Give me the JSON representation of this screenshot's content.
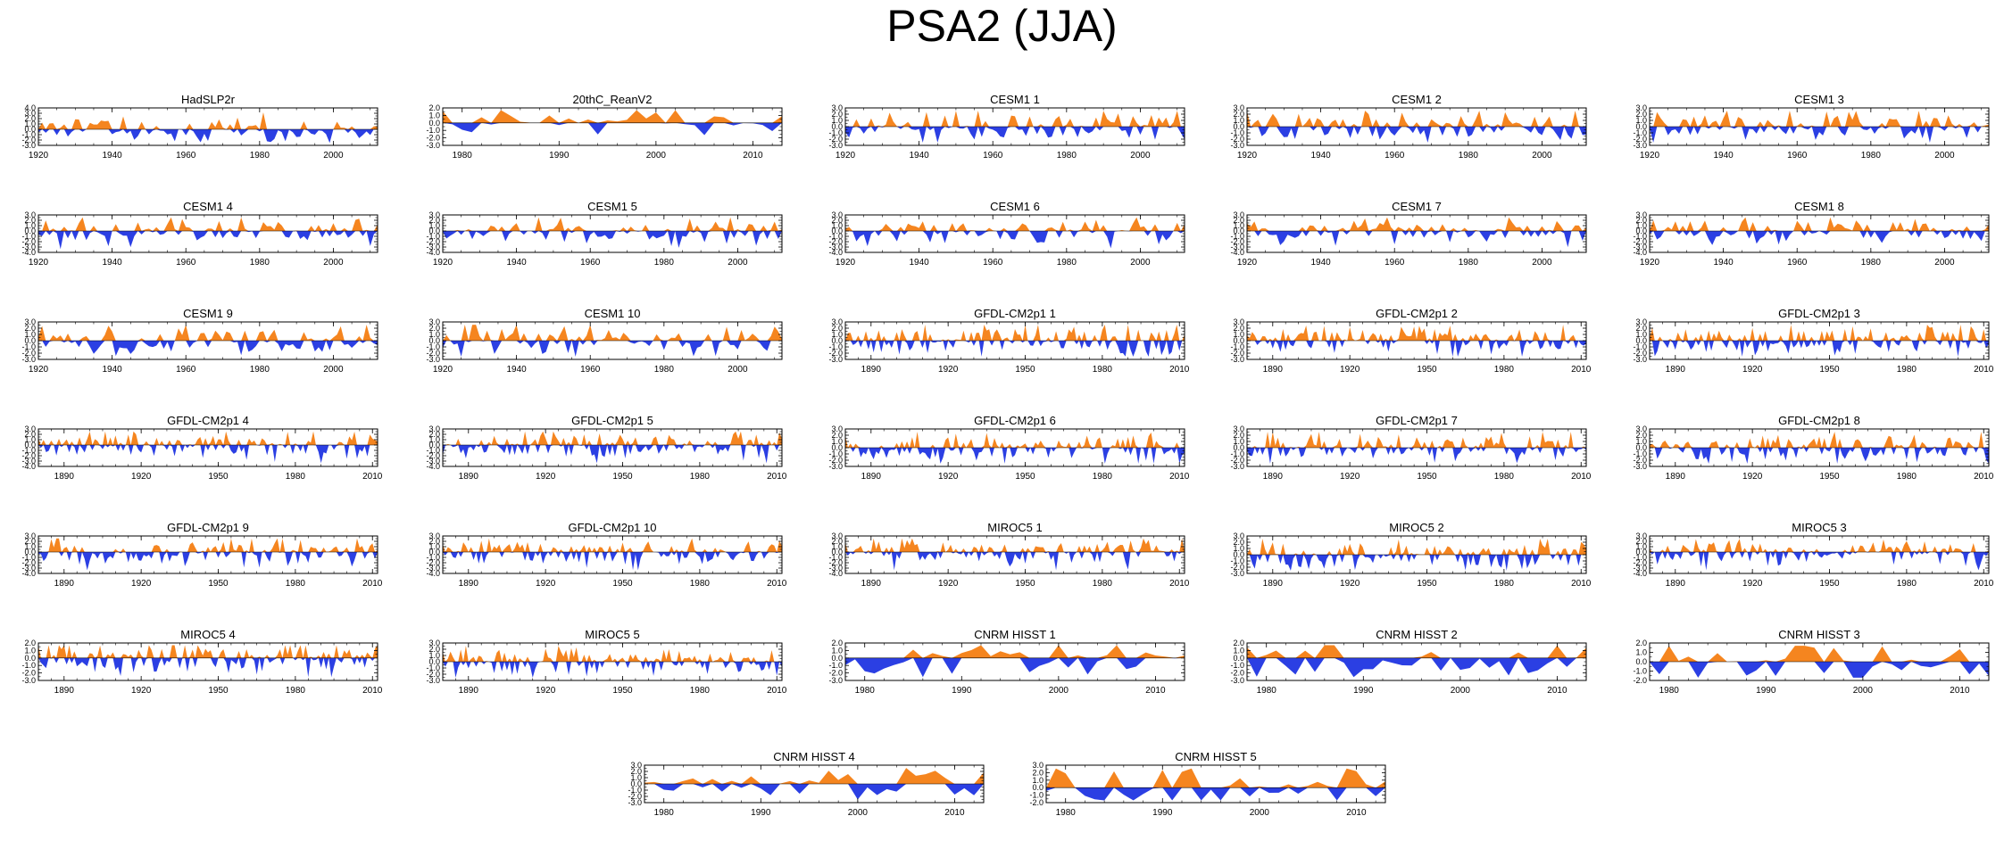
{
  "title": "PSA2 (JJA)",
  "colors": {
    "positive": "#f5851f",
    "negative": "#2b3fe3",
    "axis": "#000000"
  },
  "chart_data": [
    {
      "type": "area",
      "title": "HadSLP2r",
      "xlim": [
        1920,
        2012
      ],
      "xticks": [
        1920,
        1940,
        1960,
        1980,
        2000
      ],
      "ylim": [
        -3,
        4
      ],
      "yticks": [
        -3,
        -2,
        -1,
        0,
        1,
        2,
        3,
        4
      ],
      "seed": 1
    },
    {
      "type": "area",
      "title": "20thC_ReanV2",
      "xlim": [
        1978,
        2013
      ],
      "xticks": [
        1980,
        1990,
        2000,
        2010
      ],
      "ylim": [
        -3,
        2
      ],
      "yticks": [
        -3,
        -2,
        -1,
        0,
        1,
        2
      ],
      "seed": 2
    },
    {
      "type": "area",
      "title": "CESM1 1",
      "xlim": [
        1920,
        2012
      ],
      "xticks": [
        1920,
        1940,
        1960,
        1980,
        2000
      ],
      "ylim": [
        -3,
        3
      ],
      "yticks": [
        -3,
        -2,
        -1,
        0,
        1,
        2,
        3
      ],
      "seed": 3
    },
    {
      "type": "area",
      "title": "CESM1 2",
      "xlim": [
        1920,
        2012
      ],
      "xticks": [
        1920,
        1940,
        1960,
        1980,
        2000
      ],
      "ylim": [
        -3,
        3
      ],
      "yticks": [
        -3,
        -2,
        -1,
        0,
        1,
        2,
        3
      ],
      "seed": 4
    },
    {
      "type": "area",
      "title": "CESM1 3",
      "xlim": [
        1920,
        2012
      ],
      "xticks": [
        1920,
        1940,
        1960,
        1980,
        2000
      ],
      "ylim": [
        -3,
        3
      ],
      "yticks": [
        -3,
        -2,
        -1,
        0,
        1,
        2,
        3
      ],
      "seed": 5
    },
    {
      "type": "area",
      "title": "CESM1 4",
      "xlim": [
        1920,
        2012
      ],
      "xticks": [
        1920,
        1940,
        1960,
        1980,
        2000
      ],
      "ylim": [
        -4,
        3
      ],
      "yticks": [
        -4,
        -3,
        -2,
        -1,
        0,
        1,
        2,
        3
      ],
      "seed": 6
    },
    {
      "type": "area",
      "title": "CESM1 5",
      "xlim": [
        1920,
        2012
      ],
      "xticks": [
        1920,
        1940,
        1960,
        1980,
        2000
      ],
      "ylim": [
        -4,
        3
      ],
      "yticks": [
        -4,
        -3,
        -2,
        -1,
        0,
        1,
        2,
        3
      ],
      "seed": 7
    },
    {
      "type": "area",
      "title": "CESM1 6",
      "xlim": [
        1920,
        2012
      ],
      "xticks": [
        1920,
        1940,
        1960,
        1980,
        2000
      ],
      "ylim": [
        -4,
        3
      ],
      "yticks": [
        -4,
        -3,
        -2,
        -1,
        0,
        1,
        2,
        3
      ],
      "seed": 8
    },
    {
      "type": "area",
      "title": "CESM1 7",
      "xlim": [
        1920,
        2012
      ],
      "xticks": [
        1920,
        1940,
        1960,
        1980,
        2000
      ],
      "ylim": [
        -4,
        3
      ],
      "yticks": [
        -4,
        -3,
        -2,
        -1,
        0,
        1,
        2,
        3
      ],
      "seed": 9
    },
    {
      "type": "area",
      "title": "CESM1 8",
      "xlim": [
        1920,
        2012
      ],
      "xticks": [
        1920,
        1940,
        1960,
        1980,
        2000
      ],
      "ylim": [
        -4,
        3
      ],
      "yticks": [
        -4,
        -3,
        -2,
        -1,
        0,
        1,
        2,
        3
      ],
      "seed": 10
    },
    {
      "type": "area",
      "title": "CESM1 9",
      "xlim": [
        1920,
        2012
      ],
      "xticks": [
        1920,
        1940,
        1960,
        1980,
        2000
      ],
      "ylim": [
        -3,
        3
      ],
      "yticks": [
        -3,
        -2,
        -1,
        0,
        1,
        2,
        3
      ],
      "seed": 11
    },
    {
      "type": "area",
      "title": "CESM1 10",
      "xlim": [
        1920,
        2012
      ],
      "xticks": [
        1920,
        1940,
        1960,
        1980,
        2000
      ],
      "ylim": [
        -3,
        3
      ],
      "yticks": [
        -3,
        -2,
        -1,
        0,
        1,
        2,
        3
      ],
      "seed": 12
    },
    {
      "type": "area",
      "title": "GFDL-CM2p1 1",
      "xlim": [
        1880,
        2012
      ],
      "xticks": [
        1890,
        1920,
        1950,
        1980,
        2010
      ],
      "ylim": [
        -3,
        3
      ],
      "yticks": [
        -3,
        -2,
        -1,
        0,
        1,
        2,
        3
      ],
      "seed": 13
    },
    {
      "type": "area",
      "title": "GFDL-CM2p1 2",
      "xlim": [
        1880,
        2012
      ],
      "xticks": [
        1890,
        1920,
        1950,
        1980,
        2010
      ],
      "ylim": [
        -3,
        3
      ],
      "yticks": [
        -3,
        -2,
        -1,
        0,
        1,
        2,
        3
      ],
      "seed": 14
    },
    {
      "type": "area",
      "title": "GFDL-CM2p1 3",
      "xlim": [
        1880,
        2012
      ],
      "xticks": [
        1890,
        1920,
        1950,
        1980,
        2010
      ],
      "ylim": [
        -3,
        3
      ],
      "yticks": [
        -3,
        -2,
        -1,
        0,
        1,
        2,
        3
      ],
      "seed": 15
    },
    {
      "type": "area",
      "title": "GFDL-CM2p1 4",
      "xlim": [
        1880,
        2012
      ],
      "xticks": [
        1890,
        1920,
        1950,
        1980,
        2010
      ],
      "ylim": [
        -4,
        3
      ],
      "yticks": [
        -4,
        -3,
        -2,
        -1,
        0,
        1,
        2,
        3
      ],
      "seed": 16
    },
    {
      "type": "area",
      "title": "GFDL-CM2p1 5",
      "xlim": [
        1880,
        2012
      ],
      "xticks": [
        1890,
        1920,
        1950,
        1980,
        2010
      ],
      "ylim": [
        -4,
        3
      ],
      "yticks": [
        -4,
        -3,
        -2,
        -1,
        0,
        1,
        2,
        3
      ],
      "seed": 17
    },
    {
      "type": "area",
      "title": "GFDL-CM2p1 6",
      "xlim": [
        1880,
        2012
      ],
      "xticks": [
        1890,
        1920,
        1950,
        1980,
        2010
      ],
      "ylim": [
        -3,
        3
      ],
      "yticks": [
        -3,
        -2,
        -1,
        0,
        1,
        2,
        3
      ],
      "seed": 18
    },
    {
      "type": "area",
      "title": "GFDL-CM2p1 7",
      "xlim": [
        1880,
        2012
      ],
      "xticks": [
        1890,
        1920,
        1950,
        1980,
        2010
      ],
      "ylim": [
        -3,
        3
      ],
      "yticks": [
        -3,
        -2,
        -1,
        0,
        1,
        2,
        3
      ],
      "seed": 19
    },
    {
      "type": "area",
      "title": "GFDL-CM2p1 8",
      "xlim": [
        1880,
        2012
      ],
      "xticks": [
        1890,
        1920,
        1950,
        1980,
        2010
      ],
      "ylim": [
        -3,
        3
      ],
      "yticks": [
        -3,
        -2,
        -1,
        0,
        1,
        2,
        3
      ],
      "seed": 20
    },
    {
      "type": "area",
      "title": "GFDL-CM2p1 9",
      "xlim": [
        1880,
        2012
      ],
      "xticks": [
        1890,
        1920,
        1950,
        1980,
        2010
      ],
      "ylim": [
        -4,
        3
      ],
      "yticks": [
        -4,
        -3,
        -2,
        -1,
        0,
        1,
        2,
        3
      ],
      "seed": 21
    },
    {
      "type": "area",
      "title": "GFDL-CM2p1 10",
      "xlim": [
        1880,
        2012
      ],
      "xticks": [
        1890,
        1920,
        1950,
        1980,
        2010
      ],
      "ylim": [
        -4,
        3
      ],
      "yticks": [
        -4,
        -3,
        -2,
        -1,
        0,
        1,
        2,
        3
      ],
      "seed": 22
    },
    {
      "type": "area",
      "title": "MIROC5 1",
      "xlim": [
        1880,
        2012
      ],
      "xticks": [
        1890,
        1920,
        1950,
        1980,
        2010
      ],
      "ylim": [
        -4,
        3
      ],
      "yticks": [
        -4,
        -3,
        -2,
        -1,
        0,
        1,
        2,
        3
      ],
      "seed": 23
    },
    {
      "type": "area",
      "title": "MIROC5 2",
      "xlim": [
        1880,
        2012
      ],
      "xticks": [
        1890,
        1920,
        1950,
        1980,
        2010
      ],
      "ylim": [
        -3,
        3
      ],
      "yticks": [
        -3,
        -2,
        -1,
        0,
        1,
        2,
        3
      ],
      "seed": 24
    },
    {
      "type": "area",
      "title": "MIROC5 3",
      "xlim": [
        1880,
        2012
      ],
      "xticks": [
        1890,
        1920,
        1950,
        1980,
        2010
      ],
      "ylim": [
        -4,
        3
      ],
      "yticks": [
        -4,
        -3,
        -2,
        -1,
        0,
        1,
        2,
        3
      ],
      "seed": 25
    },
    {
      "type": "area",
      "title": "MIROC5 4",
      "xlim": [
        1880,
        2012
      ],
      "xticks": [
        1890,
        1920,
        1950,
        1980,
        2010
      ],
      "ylim": [
        -3,
        2
      ],
      "yticks": [
        -3,
        -2,
        -1,
        0,
        1,
        2
      ],
      "seed": 26
    },
    {
      "type": "area",
      "title": "MIROC5 5",
      "xlim": [
        1880,
        2012
      ],
      "xticks": [
        1890,
        1920,
        1950,
        1980,
        2010
      ],
      "ylim": [
        -3,
        3
      ],
      "yticks": [
        -3,
        -2,
        -1,
        0,
        1,
        2,
        3
      ],
      "seed": 27
    },
    {
      "type": "area",
      "title": "CNRM HISST 1",
      "xlim": [
        1978,
        2013
      ],
      "xticks": [
        1980,
        1990,
        2000,
        2010
      ],
      "ylim": [
        -3,
        2
      ],
      "yticks": [
        -3,
        -2,
        -1,
        0,
        1,
        2
      ],
      "seed": 28
    },
    {
      "type": "area",
      "title": "CNRM HISST 2",
      "xlim": [
        1978,
        2013
      ],
      "xticks": [
        1980,
        1990,
        2000,
        2010
      ],
      "ylim": [
        -3,
        2
      ],
      "yticks": [
        -3,
        -2,
        -1,
        0,
        1,
        2
      ],
      "seed": 29
    },
    {
      "type": "area",
      "title": "CNRM HISST 3",
      "xlim": [
        1978,
        2013
      ],
      "xticks": [
        1980,
        1990,
        2000,
        2010
      ],
      "ylim": [
        -2,
        2
      ],
      "yticks": [
        -2,
        -1,
        0,
        1,
        2
      ],
      "seed": 30
    },
    {
      "type": "area",
      "title": "CNRM HISST 4",
      "xlim": [
        1978,
        2013
      ],
      "xticks": [
        1980,
        1990,
        2000,
        2010
      ],
      "ylim": [
        -3,
        3
      ],
      "yticks": [
        -3,
        -2,
        -1,
        0,
        1,
        2,
        3
      ],
      "seed": 31
    },
    {
      "type": "area",
      "title": "CNRM HISST 5",
      "xlim": [
        1978,
        2013
      ],
      "xticks": [
        1980,
        1990,
        2000,
        2010
      ],
      "ylim": [
        -2,
        3
      ],
      "yticks": [
        -2,
        -1,
        0,
        1,
        2,
        3
      ],
      "seed": 32
    }
  ]
}
